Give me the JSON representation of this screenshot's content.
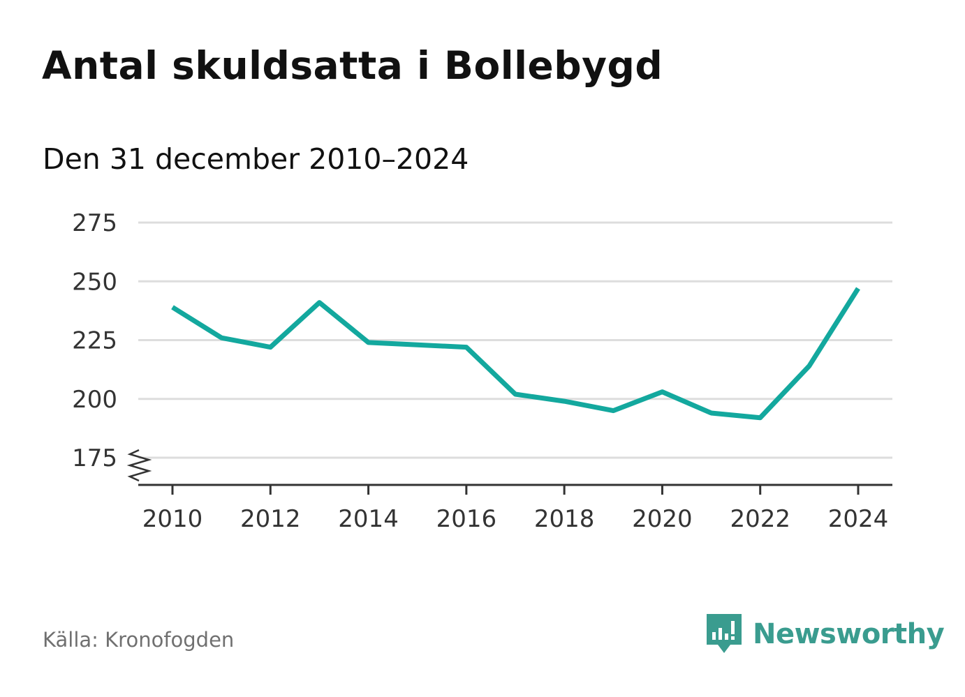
{
  "title": "Antal skuldsatta i Bollebygd",
  "subtitle": "Den 31 december 2010–2024",
  "source": "Källa: Kronofogden",
  "brand": {
    "name": "Newsworthy",
    "logo_icon": "newsworthy-chart-bubble-icon"
  },
  "colors": {
    "line": "#13a89e",
    "grid": "#dddddd",
    "axis": "#333333",
    "brand": "#3a9c8f"
  },
  "chart_data": {
    "type": "line",
    "title": "Antal skuldsatta i Bollebygd",
    "subtitle": "Den 31 december 2010–2024",
    "x": [
      2010,
      2011,
      2012,
      2013,
      2014,
      2015,
      2016,
      2017,
      2018,
      2019,
      2020,
      2021,
      2022,
      2023,
      2024
    ],
    "series": [
      {
        "name": "Antal skuldsatta",
        "values": [
          239,
          226,
          222,
          241,
          224,
          223,
          222,
          202,
          199,
          195,
          203,
          194,
          192,
          214,
          247
        ]
      }
    ],
    "x_ticks": [
      2010,
      2012,
      2014,
      2016,
      2018,
      2020,
      2022,
      2024
    ],
    "y_ticks": [
      175,
      200,
      225,
      250,
      275
    ],
    "ylim": [
      175,
      275
    ],
    "xlim": [
      2010,
      2024
    ],
    "y_axis_break": true,
    "grid": true,
    "xlabel": "",
    "ylabel": ""
  }
}
